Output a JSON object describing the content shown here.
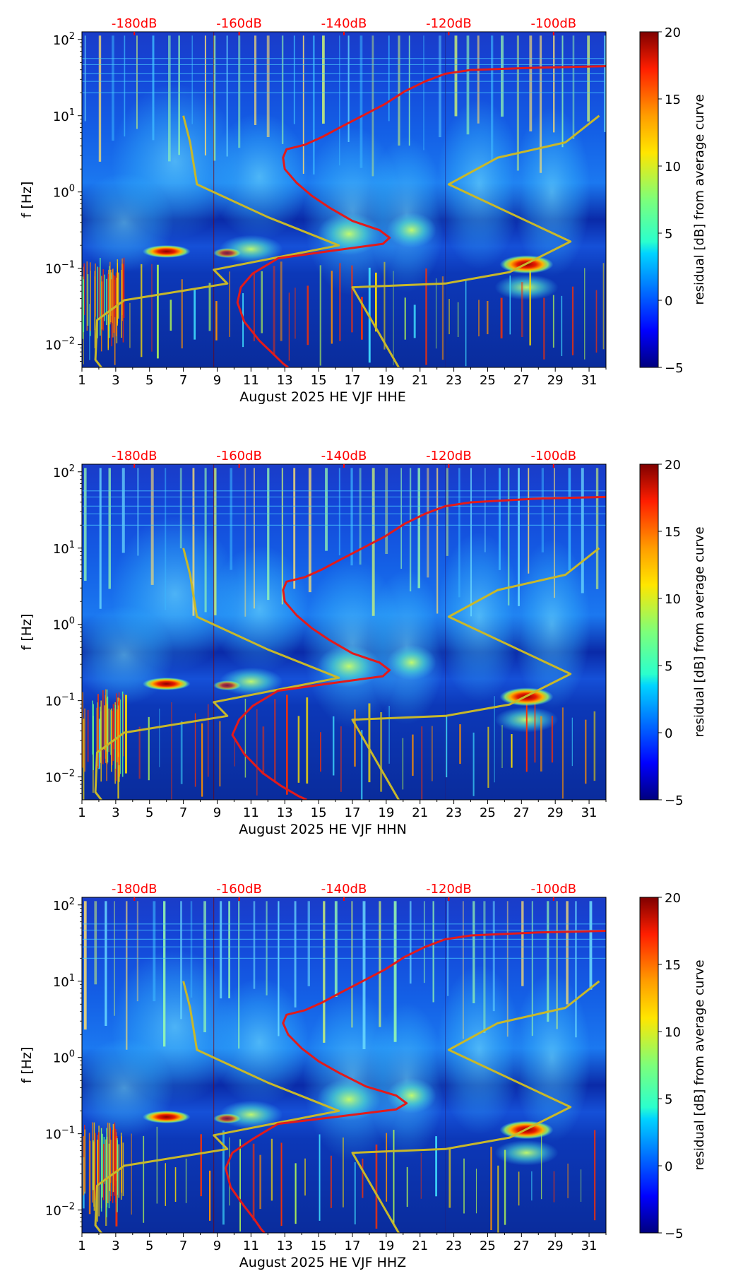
{
  "chart_data": [
    {
      "type": "heatmap",
      "component": "HHE",
      "xlabel": "August 2025 HE VJF  HHE",
      "ylabel": "f [Hz]",
      "x_ticks": [
        "1",
        "3",
        "5",
        "7",
        "9",
        "11",
        "13",
        "15",
        "17",
        "19",
        "21",
        "23",
        "25",
        "27",
        "29",
        "31"
      ],
      "y_ticks": [
        "10^-2",
        "10^-1",
        "10^0",
        "10^1",
        "10^2"
      ],
      "xlim": [
        1,
        32
      ],
      "ylim_log10": [
        -2.3,
        2.1
      ],
      "colorbar": {
        "label": "residual [dB] from average curve",
        "ticks": [
          "20",
          "15",
          "10",
          "5",
          "0",
          "−5"
        ],
        "range": [
          -5,
          20
        ]
      },
      "top_axis": {
        "labels": [
          "-180dB",
          "-160dB",
          "-140dB",
          "-120dB",
          "-100dB"
        ],
        "days": [
          4.1,
          10.3,
          16.5,
          22.7,
          28.9
        ]
      },
      "yellow_curve": {
        "name": "noise model bounds",
        "days": [
          7.0,
          7.4,
          7.8,
          12.0,
          16.2,
          8.8,
          9.6,
          3.5,
          1.9,
          1.8,
          2.5,
          2.6
        ],
        "log10_f": [
          1.0,
          0.65,
          0.1,
          -0.33,
          -0.7,
          -1.02,
          -1.2,
          -1.42,
          -1.68,
          -2.2,
          -2.4,
          -2.5
        ]
      },
      "yellow_curve_2": {
        "name": "noise model bounds (right)",
        "days": [
          31.6,
          29.6,
          25.6,
          22.7,
          29.9,
          26.3,
          22.5,
          17.0,
          20.0
        ],
        "log10_f": [
          1.0,
          0.65,
          0.45,
          0.1,
          -0.65,
          -1.05,
          -1.2,
          -1.25,
          -2.4
        ]
      },
      "red_curve": {
        "name": "average PSD curve",
        "days": [
          32,
          28,
          24,
          22.5,
          21.3,
          20.1,
          18.9,
          17.6,
          16.3,
          15.2,
          14.2,
          13.1,
          12.9,
          13.0,
          13.7,
          14.6,
          15.6,
          17.0,
          18.6,
          19.2,
          18.8,
          15.5,
          12.6,
          11.1,
          10.4,
          10.2,
          10.6,
          11.5,
          12.3,
          12.9,
          13.2
        ],
        "log10_f": [
          1.65,
          1.63,
          1.6,
          1.55,
          1.45,
          1.32,
          1.15,
          1.0,
          0.85,
          0.72,
          0.62,
          0.56,
          0.45,
          0.3,
          0.12,
          -0.05,
          -0.2,
          -0.38,
          -0.5,
          -0.6,
          -0.68,
          -0.78,
          -0.87,
          -1.07,
          -1.25,
          -1.45,
          -1.7,
          -1.95,
          -2.12,
          -2.25,
          -2.3
        ]
      }
    },
    {
      "type": "heatmap",
      "component": "HHN",
      "xlabel": "August 2025 HE VJF  HHN",
      "ylabel": "f [Hz]",
      "x_ticks": [
        "1",
        "3",
        "5",
        "7",
        "9",
        "11",
        "13",
        "15",
        "17",
        "19",
        "21",
        "23",
        "25",
        "27",
        "29",
        "31"
      ],
      "y_ticks": [
        "10^-2",
        "10^-1",
        "10^0",
        "10^1",
        "10^2"
      ],
      "xlim": [
        1,
        32
      ],
      "ylim_log10": [
        -2.3,
        2.1
      ],
      "colorbar": {
        "label": "residual [dB] from average curve",
        "ticks": [
          "20",
          "15",
          "10",
          "5",
          "0",
          "−5"
        ],
        "range": [
          -5,
          20
        ]
      },
      "top_axis": {
        "labels": [
          "-180dB",
          "-160dB",
          "-140dB",
          "-120dB",
          "-100dB"
        ],
        "days": [
          4.1,
          10.3,
          16.5,
          22.7,
          28.9
        ]
      },
      "yellow_curve": {
        "name": "noise model bounds",
        "days": [
          7.0,
          7.4,
          7.8,
          12.0,
          16.2,
          8.8,
          9.6,
          3.5,
          1.9,
          1.8,
          2.5,
          2.6
        ],
        "log10_f": [
          1.0,
          0.65,
          0.1,
          -0.33,
          -0.7,
          -1.02,
          -1.2,
          -1.42,
          -1.68,
          -2.2,
          -2.4,
          -2.5
        ]
      },
      "yellow_curve_2": {
        "name": "noise model bounds (right)",
        "days": [
          31.6,
          29.6,
          25.6,
          22.7,
          29.9,
          26.3,
          22.5,
          17.0,
          20.0
        ],
        "log10_f": [
          1.0,
          0.65,
          0.45,
          0.1,
          -0.65,
          -1.05,
          -1.2,
          -1.25,
          -2.4
        ]
      },
      "red_curve": {
        "name": "average PSD curve",
        "days": [
          32,
          28,
          24,
          22.5,
          21.3,
          20.1,
          18.9,
          17.6,
          16.3,
          15.2,
          14.2,
          13.1,
          12.9,
          13.0,
          13.7,
          14.6,
          15.6,
          17.0,
          18.6,
          19.2,
          18.8,
          15.5,
          12.6,
          11.1,
          10.3,
          9.9,
          10.6,
          11.7,
          12.8,
          13.8,
          14.3
        ],
        "log10_f": [
          1.67,
          1.65,
          1.6,
          1.55,
          1.45,
          1.32,
          1.15,
          1.0,
          0.85,
          0.72,
          0.62,
          0.56,
          0.45,
          0.3,
          0.12,
          -0.05,
          -0.2,
          -0.38,
          -0.5,
          -0.6,
          -0.68,
          -0.78,
          -0.87,
          -1.07,
          -1.25,
          -1.45,
          -1.7,
          -1.95,
          -2.12,
          -2.25,
          -2.3
        ]
      }
    },
    {
      "type": "heatmap",
      "component": "HHZ",
      "xlabel": "August 2025 HE VJF  HHZ",
      "ylabel": "f [Hz]",
      "x_ticks": [
        "1",
        "3",
        "5",
        "7",
        "9",
        "11",
        "13",
        "15",
        "17",
        "19",
        "21",
        "23",
        "25",
        "27",
        "29",
        "31"
      ],
      "y_ticks": [
        "10^-2",
        "10^-1",
        "10^0",
        "10^1",
        "10^2"
      ],
      "xlim": [
        1,
        32
      ],
      "ylim_log10": [
        -2.3,
        2.1
      ],
      "colorbar": {
        "label": "residual [dB] from average curve",
        "ticks": [
          "20",
          "15",
          "10",
          "5",
          "0",
          "−5"
        ],
        "range": [
          -5,
          20
        ]
      },
      "top_axis": {
        "labels": [
          "-180dB",
          "-160dB",
          "-140dB",
          "-120dB",
          "-100dB"
        ],
        "days": [
          4.1,
          10.3,
          16.5,
          22.7,
          28.9
        ]
      },
      "yellow_curve": {
        "name": "noise model bounds",
        "days": [
          7.0,
          7.4,
          7.8,
          12.0,
          16.2,
          8.8,
          9.6,
          3.5,
          1.9,
          1.8,
          2.5,
          2.6
        ],
        "log10_f": [
          1.0,
          0.65,
          0.1,
          -0.33,
          -0.7,
          -1.02,
          -1.2,
          -1.42,
          -1.68,
          -2.2,
          -2.4,
          -2.5
        ]
      },
      "yellow_curve_2": {
        "name": "noise model bounds (right)",
        "days": [
          31.6,
          29.6,
          25.6,
          22.7,
          29.9,
          26.3,
          22.5,
          17.0,
          20.0
        ],
        "log10_f": [
          1.0,
          0.65,
          0.45,
          0.1,
          -0.65,
          -1.05,
          -1.2,
          -1.25,
          -2.4
        ]
      },
      "red_curve": {
        "name": "average PSD curve",
        "days": [
          32,
          28,
          24,
          22.5,
          21.3,
          20.1,
          18.9,
          17.6,
          16.3,
          15.2,
          14.2,
          13.1,
          12.9,
          13.2,
          14.0,
          15.0,
          16.2,
          17.8,
          19.6,
          20.2,
          19.6,
          16.0,
          12.6,
          11.1,
          9.9,
          9.5,
          9.8,
          10.6,
          11.2,
          11.6,
          11.8
        ],
        "log10_f": [
          1.66,
          1.64,
          1.6,
          1.55,
          1.45,
          1.32,
          1.15,
          1.0,
          0.85,
          0.72,
          0.62,
          0.56,
          0.45,
          0.3,
          0.12,
          -0.05,
          -0.2,
          -0.38,
          -0.5,
          -0.6,
          -0.68,
          -0.78,
          -0.87,
          -1.07,
          -1.25,
          -1.45,
          -1.7,
          -1.95,
          -2.12,
          -2.25,
          -2.3
        ]
      }
    }
  ]
}
